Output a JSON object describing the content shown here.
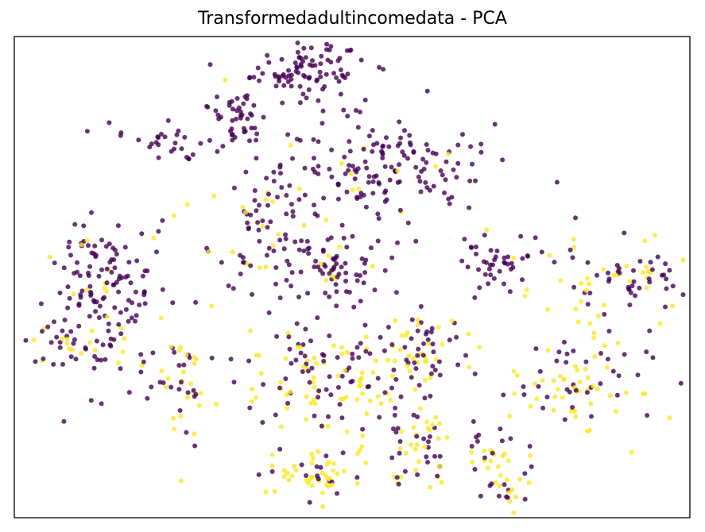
{
  "chart_data": {
    "type": "scatter",
    "title": "Transformedadultincomedata - PCA",
    "xlabel": "",
    "ylabel": "",
    "xlim": [
      0,
      100
    ],
    "ylim": [
      0,
      100
    ],
    "axis_ticks": false,
    "grid": false,
    "colors": {
      "class_0": "#440154",
      "class_1": "#fde725"
    },
    "clusters": [
      {
        "cx": 43.5,
        "cy": 93.0,
        "sx": 4.2,
        "sy": 2.8,
        "n": 85,
        "yellow": 0.0
      },
      {
        "cx": 33.0,
        "cy": 84.0,
        "sx": 2.6,
        "sy": 4.0,
        "n": 50,
        "yellow": 0.06
      },
      {
        "cx": 23.0,
        "cy": 78.0,
        "sx": 3.5,
        "sy": 2.0,
        "n": 30,
        "yellow": 0.0
      },
      {
        "cx": 52.5,
        "cy": 72.0,
        "sx": 8.5,
        "sy": 6.0,
        "n": 170,
        "yellow": 0.07
      },
      {
        "cx": 37.0,
        "cy": 59.0,
        "sx": 4.0,
        "sy": 6.0,
        "n": 75,
        "yellow": 0.18
      },
      {
        "cx": 47.0,
        "cy": 52.0,
        "sx": 3.8,
        "sy": 4.5,
        "n": 65,
        "yellow": 0.1
      },
      {
        "cx": 13.0,
        "cy": 47.0,
        "sx": 5.0,
        "sy": 8.0,
        "n": 150,
        "yellow": 0.12
      },
      {
        "cx": 9.0,
        "cy": 35.5,
        "sx": 4.0,
        "sy": 2.0,
        "n": 30,
        "yellow": 0.4
      },
      {
        "cx": 25.0,
        "cy": 27.0,
        "sx": 2.0,
        "sy": 6.0,
        "n": 40,
        "yellow": 0.4
      },
      {
        "cx": 72.0,
        "cy": 53.0,
        "sx": 3.5,
        "sy": 3.0,
        "n": 45,
        "yellow": 0.1
      },
      {
        "cx": 90.0,
        "cy": 50.0,
        "sx": 4.5,
        "sy": 3.5,
        "n": 70,
        "yellow": 0.35
      },
      {
        "cx": 47.0,
        "cy": 28.0,
        "sx": 8.5,
        "sy": 6.5,
        "n": 150,
        "yellow": 0.45
      },
      {
        "cx": 61.0,
        "cy": 36.0,
        "sx": 3.8,
        "sy": 4.5,
        "n": 65,
        "yellow": 0.38
      },
      {
        "cx": 45.0,
        "cy": 9.0,
        "sx": 3.2,
        "sy": 2.6,
        "n": 55,
        "yellow": 0.75
      },
      {
        "cx": 59.5,
        "cy": 14.0,
        "sx": 2.4,
        "sy": 4.5,
        "n": 50,
        "yellow": 0.45
      },
      {
        "cx": 72.5,
        "cy": 10.0,
        "sx": 2.6,
        "sy": 3.8,
        "n": 45,
        "yellow": 0.65
      },
      {
        "cx": 83.0,
        "cy": 27.5,
        "sx": 5.0,
        "sy": 6.5,
        "n": 95,
        "yellow": 0.55
      }
    ]
  }
}
